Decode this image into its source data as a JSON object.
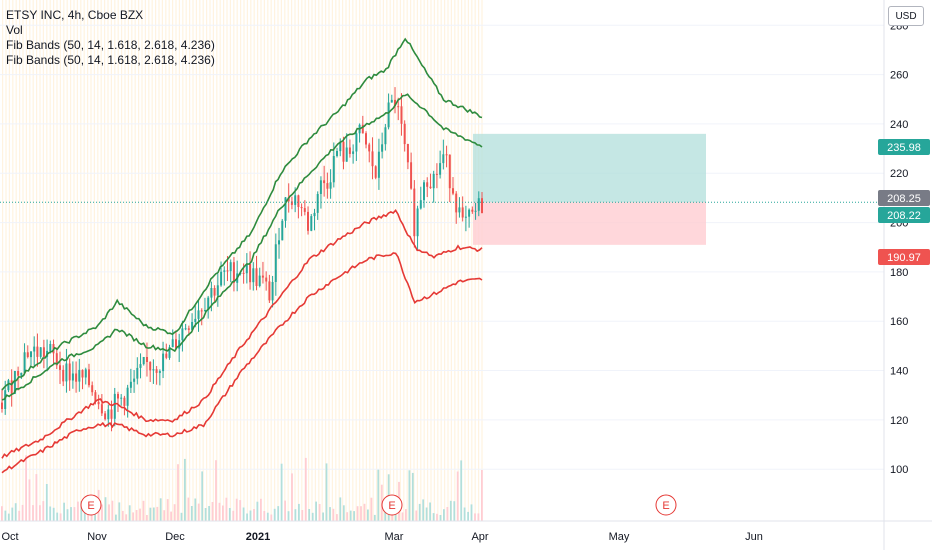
{
  "legend": {
    "title": "ETSY INC, 4h, Cboe BZX",
    "lines": [
      "Vol",
      "Fib Bands (50, 14, 1.618, 2.618, 4.236)",
      "Fib Bands (50, 14, 1.618, 2.618, 4.236)"
    ]
  },
  "currency": "USD",
  "colors": {
    "up": "#26a69a",
    "down": "#ef5350",
    "band_green": "#2e8b3e",
    "band_red": "#e53935",
    "target_fill": "#b2dfdb",
    "stop_fill": "#ffcdd2",
    "session_stripe": "#fff3e0",
    "earnings": "#e53935"
  },
  "chart_data": {
    "type": "candlestick",
    "yaxis": {
      "ticks": [
        100,
        120,
        140,
        160,
        180,
        200,
        220,
        240,
        260,
        280
      ],
      "range": [
        79,
        287
      ]
    },
    "xaxis": {
      "labels": [
        "Oct",
        "Nov",
        "Dec",
        "2021",
        "Mar",
        "Apr",
        "May",
        "Jun"
      ]
    },
    "price_tags": [
      {
        "value": 235.98,
        "label": "235.98",
        "color": "#26a69a"
      },
      {
        "value": 208.25,
        "label": "208.25",
        "color": "#787b86"
      },
      {
        "value": 208.22,
        "label": "208.22",
        "color": "#26a69a"
      },
      {
        "value": 190.97,
        "label": "190.97",
        "color": "#ef5350"
      }
    ],
    "close_path": [
      [
        0,
        127
      ],
      [
        0.05,
        148
      ],
      [
        0.1,
        147
      ],
      [
        0.13,
        140
      ],
      [
        0.18,
        135
      ],
      [
        0.22,
        123
      ],
      [
        0.26,
        131
      ],
      [
        0.3,
        142
      ],
      [
        0.34,
        144
      ],
      [
        0.38,
        158
      ],
      [
        0.42,
        168
      ],
      [
        0.46,
        178
      ],
      [
        0.5,
        182
      ],
      [
        0.54,
        176
      ],
      [
        0.56,
        170
      ],
      [
        0.58,
        202
      ],
      [
        0.6,
        212
      ],
      [
        0.62,
        208
      ],
      [
        0.64,
        198
      ],
      [
        0.66,
        214
      ],
      [
        0.68,
        218
      ],
      [
        0.7,
        230
      ],
      [
        0.72,
        226
      ],
      [
        0.74,
        237
      ],
      [
        0.76,
        230
      ],
      [
        0.78,
        218
      ],
      [
        0.8,
        243
      ],
      [
        0.82,
        250
      ],
      [
        0.84,
        228
      ],
      [
        0.86,
        198
      ],
      [
        0.88,
        220
      ],
      [
        0.9,
        218
      ],
      [
        0.92,
        227
      ],
      [
        0.94,
        214
      ],
      [
        0.96,
        198
      ],
      [
        0.98,
        202
      ],
      [
        1,
        208
      ]
    ],
    "bands": [
      {
        "name": "upper-4.236",
        "color": "green",
        "points": [
          [
            0,
            132
          ],
          [
            0.12,
            150
          ],
          [
            0.2,
            158
          ],
          [
            0.24,
            168
          ],
          [
            0.3,
            158
          ],
          [
            0.36,
            155
          ],
          [
            0.44,
            178
          ],
          [
            0.52,
            196
          ],
          [
            0.58,
            220
          ],
          [
            0.64,
            234
          ],
          [
            0.7,
            245
          ],
          [
            0.76,
            258
          ],
          [
            0.8,
            262
          ],
          [
            0.84,
            275
          ],
          [
            0.88,
            262
          ],
          [
            0.92,
            250
          ],
          [
            1,
            243
          ]
        ]
      },
      {
        "name": "upper-2.618",
        "color": "green",
        "points": [
          [
            0,
            128
          ],
          [
            0.12,
            144
          ],
          [
            0.2,
            150
          ],
          [
            0.24,
            157
          ],
          [
            0.3,
            150
          ],
          [
            0.36,
            148
          ],
          [
            0.44,
            167
          ],
          [
            0.52,
            185
          ],
          [
            0.58,
            206
          ],
          [
            0.64,
            220
          ],
          [
            0.7,
            232
          ],
          [
            0.76,
            240
          ],
          [
            0.8,
            244
          ],
          [
            0.84,
            252
          ],
          [
            0.88,
            246
          ],
          [
            0.92,
            238
          ],
          [
            1,
            231
          ]
        ]
      },
      {
        "name": "lower-2.618",
        "color": "red",
        "points": [
          [
            0,
            105
          ],
          [
            0.08,
            112
          ],
          [
            0.16,
            123
          ],
          [
            0.2,
            128
          ],
          [
            0.24,
            126
          ],
          [
            0.3,
            120
          ],
          [
            0.36,
            120
          ],
          [
            0.42,
            128
          ],
          [
            0.5,
            150
          ],
          [
            0.58,
            170
          ],
          [
            0.64,
            185
          ],
          [
            0.7,
            193
          ],
          [
            0.76,
            200
          ],
          [
            0.82,
            205
          ],
          [
            0.86,
            190
          ],
          [
            0.9,
            186
          ],
          [
            0.95,
            190
          ],
          [
            1,
            189
          ]
        ]
      },
      {
        "name": "lower-4.236",
        "color": "red",
        "points": [
          [
            0,
            99
          ],
          [
            0.08,
            107
          ],
          [
            0.16,
            116
          ],
          [
            0.2,
            118
          ],
          [
            0.24,
            118
          ],
          [
            0.3,
            114
          ],
          [
            0.36,
            114
          ],
          [
            0.42,
            118
          ],
          [
            0.5,
            140
          ],
          [
            0.58,
            158
          ],
          [
            0.64,
            170
          ],
          [
            0.7,
            178
          ],
          [
            0.76,
            185
          ],
          [
            0.82,
            188
          ],
          [
            0.86,
            168
          ],
          [
            0.9,
            171
          ],
          [
            0.95,
            176
          ],
          [
            1,
            177
          ]
        ]
      }
    ],
    "position": {
      "entry": 208.22,
      "target": 235.98,
      "stop": 190.97
    },
    "earnings_markers": [
      {
        "label": "E",
        "where": "late-oct"
      },
      {
        "label": "E",
        "where": "late-feb"
      },
      {
        "label": "E",
        "where": "early-may"
      }
    ]
  }
}
